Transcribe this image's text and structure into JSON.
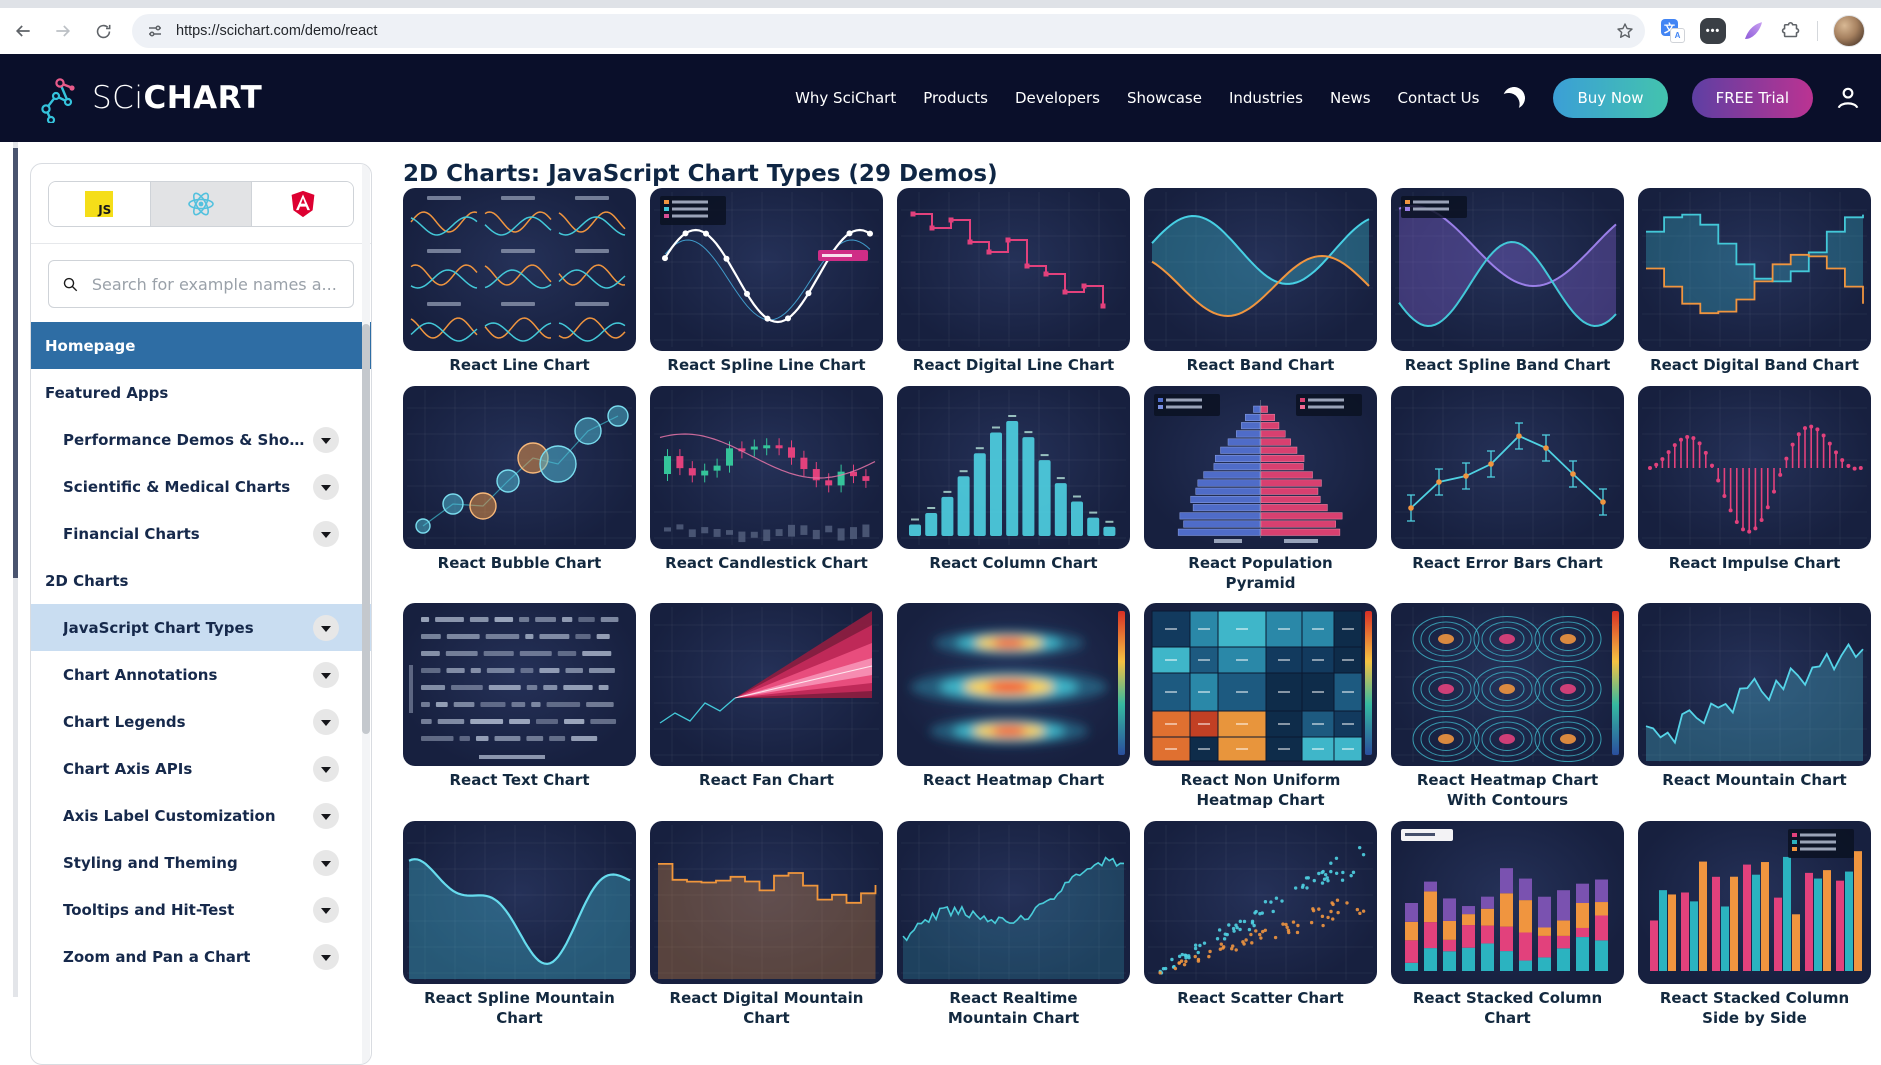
{
  "browser": {
    "url": "https://scichart.com/demo/react",
    "ext_dots_label": "•••",
    "translate_main": "文",
    "translate_sub": "A"
  },
  "header": {
    "logo_sci": "SCi",
    "logo_chart": "CHART",
    "nav": [
      "Why SciChart",
      "Products",
      "Developers",
      "Showcase",
      "Industries",
      "News",
      "Contact Us"
    ],
    "buy_label": "Buy Now",
    "trial_label": "FREE Trial"
  },
  "sidebar": {
    "framework_tabs": [
      {
        "id": "javascript",
        "selected": false
      },
      {
        "id": "react",
        "selected": true
      },
      {
        "id": "angular",
        "selected": false
      }
    ],
    "js_badge": "JS",
    "search_placeholder": "Search for example names a...",
    "items": [
      {
        "label": "Homepage",
        "style": "active",
        "expander": false
      },
      {
        "label": "Featured Apps",
        "style": "section",
        "expander": false
      },
      {
        "label": "Performance Demos & Showcases",
        "style": "sub",
        "expander": true
      },
      {
        "label": "Scientific & Medical Charts",
        "style": "sub",
        "expander": true
      },
      {
        "label": "Financial Charts",
        "style": "sub",
        "expander": true
      },
      {
        "label": "2D Charts",
        "style": "section",
        "expander": false
      },
      {
        "label": "JavaScript Chart Types",
        "style": "sub selected",
        "expander": true
      },
      {
        "label": "Chart Annotations",
        "style": "sub",
        "expander": true
      },
      {
        "label": "Chart Legends",
        "style": "sub",
        "expander": true
      },
      {
        "label": "Chart Axis APIs",
        "style": "sub",
        "expander": true
      },
      {
        "label": "Axis Label Customization",
        "style": "sub",
        "expander": true
      },
      {
        "label": "Styling and Theming",
        "style": "sub",
        "expander": true
      },
      {
        "label": "Tooltips and Hit-Test",
        "style": "sub",
        "expander": true
      },
      {
        "label": "Zoom and Pan a Chart",
        "style": "sub",
        "expander": true
      }
    ]
  },
  "main": {
    "heading": "2D Charts: JavaScript Chart Types (29 Demos)",
    "cards": [
      {
        "title": "React Line Chart",
        "sketch": "line-grid"
      },
      {
        "title": "React Spline Line Chart",
        "sketch": "spline-dots"
      },
      {
        "title": "React Digital Line Chart",
        "sketch": "step-line"
      },
      {
        "title": "React Band Chart",
        "sketch": "band"
      },
      {
        "title": "React Spline Band Chart",
        "sketch": "spline-band"
      },
      {
        "title": "React Digital Band Chart",
        "sketch": "digital-band"
      },
      {
        "title": "React Bubble Chart",
        "sketch": "bubble"
      },
      {
        "title": "React Candlestick Chart",
        "sketch": "candles"
      },
      {
        "title": "React Column Chart",
        "sketch": "columns"
      },
      {
        "title": "React Population Pyramid",
        "sketch": "pyramid"
      },
      {
        "title": "React Error Bars Chart",
        "sketch": "error-bars"
      },
      {
        "title": "React Impulse Chart",
        "sketch": "impulse"
      },
      {
        "title": "React Text Chart",
        "sketch": "text-rows"
      },
      {
        "title": "React Fan Chart",
        "sketch": "fan"
      },
      {
        "title": "React Heatmap Chart",
        "sketch": "heat-blobs"
      },
      {
        "title": "React Non Uniform Heatmap Chart",
        "sketch": "heat-grid"
      },
      {
        "title": "React Heatmap Chart With Contours",
        "sketch": "contours"
      },
      {
        "title": "React Mountain Chart",
        "sketch": "mountain"
      },
      {
        "title": "React Spline Mountain Chart",
        "sketch": "spline-mountain"
      },
      {
        "title": "React Digital Mountain Chart",
        "sketch": "step-mountain"
      },
      {
        "title": "React Realtime Mountain Chart",
        "sketch": "realtime-mountain"
      },
      {
        "title": "React Scatter Chart",
        "sketch": "scatter"
      },
      {
        "title": "React Stacked Column Chart",
        "sketch": "stacked-columns"
      },
      {
        "title": "React Stacked Column Side by Side",
        "sketch": "grouped-columns"
      }
    ]
  },
  "colors": {
    "header_bg": "#0a0f2a",
    "accent_teal": "#43c8d8",
    "accent_orange": "#f0953f",
    "accent_pink": "#e2417c",
    "buy_gradient": [
      "#3b9fd6",
      "#43c3ae"
    ],
    "trial_gradient": [
      "#5e3fa3",
      "#bb3392"
    ],
    "active_item_bg": "#2e6da4",
    "selected_item_bg": "#c9ddf1",
    "logo_cyan": "#35c3dc",
    "logo_pink": "#e85b8a"
  }
}
